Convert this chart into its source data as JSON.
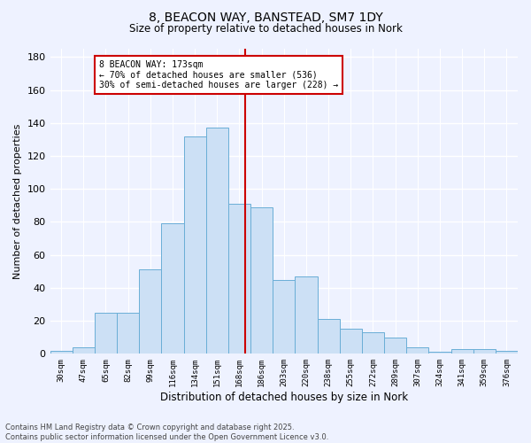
{
  "title_line1": "8, BEACON WAY, BANSTEAD, SM7 1DY",
  "title_line2": "Size of property relative to detached houses in Nork",
  "xlabel": "Distribution of detached houses by size in Nork",
  "ylabel": "Number of detached properties",
  "bar_labels": [
    "30sqm",
    "47sqm",
    "65sqm",
    "82sqm",
    "99sqm",
    "116sqm",
    "134sqm",
    "151sqm",
    "168sqm",
    "186sqm",
    "203sqm",
    "220sqm",
    "238sqm",
    "255sqm",
    "272sqm",
    "289sqm",
    "307sqm",
    "324sqm",
    "341sqm",
    "359sqm",
    "376sqm"
  ],
  "bar_heights": [
    2,
    4,
    25,
    25,
    51,
    79,
    132,
    137,
    91,
    89,
    45,
    47,
    21,
    15,
    13,
    10,
    4,
    1,
    3,
    3,
    2
  ],
  "bar_color_fill": "#cce0f5",
  "bar_color_edge": "#6aaed6",
  "vline_color": "#cc0000",
  "annotation_title": "8 BEACON WAY: 173sqm",
  "annotation_line1": "← 70% of detached houses are smaller (536)",
  "annotation_line2": "30% of semi-detached houses are larger (228) →",
  "annotation_box_color": "#cc0000",
  "annotation_box_fill": "white",
  "ylim": [
    0,
    185
  ],
  "yticks": [
    0,
    20,
    40,
    60,
    80,
    100,
    120,
    140,
    160,
    180
  ],
  "background_color": "#eef2ff",
  "grid_color": "#ffffff",
  "footer_text": "Contains HM Land Registry data © Crown copyright and database right 2025.\nContains public sector information licensed under the Open Government Licence v3.0."
}
